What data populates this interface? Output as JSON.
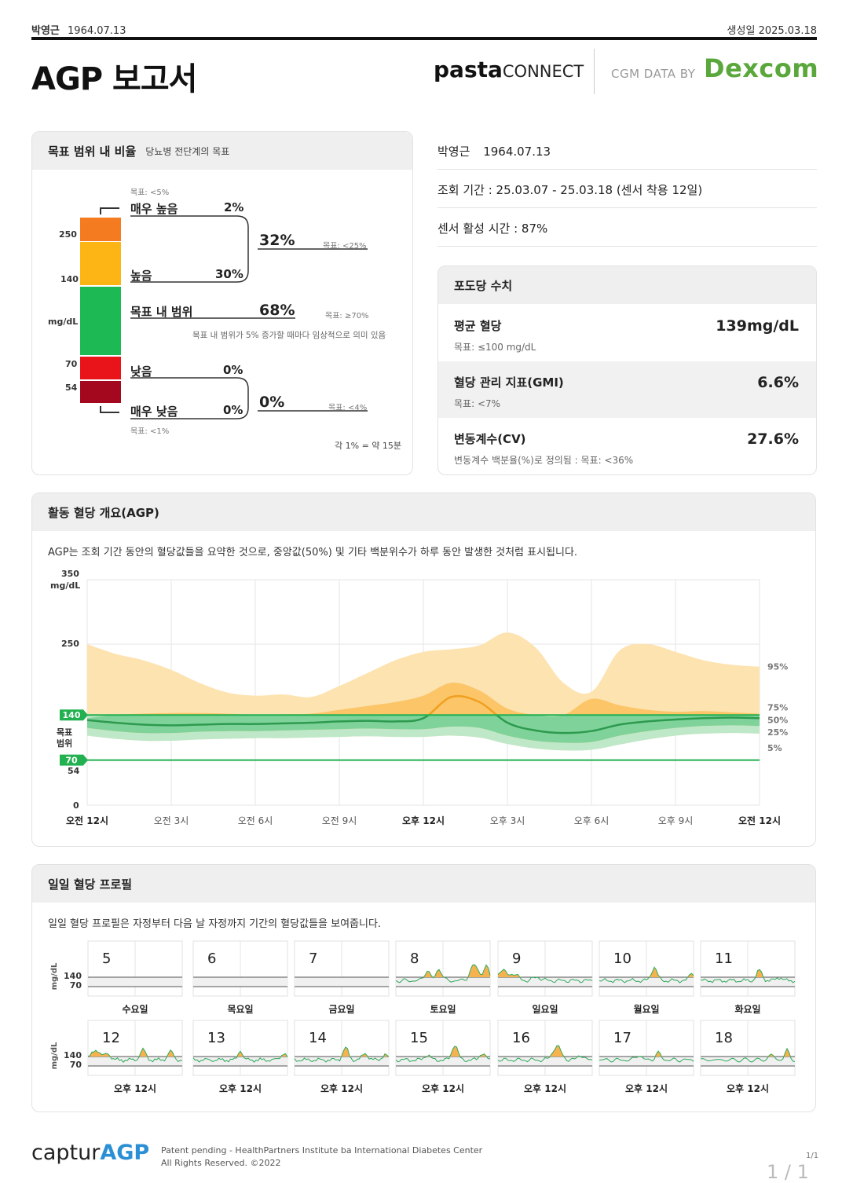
{
  "header": {
    "patient_name": "박영근",
    "patient_dob": "1964.07.13",
    "generated_label": "생성일",
    "generated_date": "2025.03.18",
    "title": "AGP 보고서",
    "brand_pasta": "pasta",
    "brand_connect": "CONNECT",
    "cgm_label": "CGM DATA BY",
    "dexcom": "Dexcom"
  },
  "tir": {
    "title": "목표 범위 내 비율",
    "subtitle": "당뇨병 전단계의 목표",
    "very_high": {
      "label": "매우 높음",
      "value": "2%",
      "goal": "목표: <5%"
    },
    "high": {
      "label": "높음",
      "value": "30%"
    },
    "high_combined": {
      "value": "32%",
      "goal": "목표: <25%"
    },
    "in_range": {
      "label": "목표 내 범위",
      "value": "68%",
      "goal": "목표: ≥70%",
      "note": "목표 내 범위가 5% 증가할 때마다 임상적으로 의미 있음"
    },
    "low": {
      "label": "낮음",
      "value": "0%"
    },
    "very_low": {
      "label": "매우 낮음",
      "value": "0%",
      "goal": "목표: <1%"
    },
    "low_combined": {
      "value": "0%",
      "goal": "목표: <4%"
    },
    "axis": {
      "t250": "250",
      "t140": "140",
      "unit": "mg/dL",
      "t70": "70",
      "t54": "54"
    },
    "footnote": "각 1% = 약 15분",
    "colors": {
      "very_high": "#f47b20",
      "high": "#fdb515",
      "in_range": "#1db954",
      "low": "#e9141a",
      "very_low": "#a3081e"
    }
  },
  "info": {
    "name": "박영근",
    "dob": "1964.07.13",
    "period": "조회 기간 : 25.03.07 - 25.03.18 (센서 착용 12일)",
    "active": "센서 활성 시간 : 87%"
  },
  "glucose": {
    "title": "포도당 수치",
    "mean": {
      "name": "평균 혈당",
      "goal": "목표: ≤100 mg/dL",
      "value": "139mg/dL"
    },
    "gmi": {
      "name": "혈당 관리 지표(GMI)",
      "goal": "목표: <7%",
      "value": "6.6%"
    },
    "cv": {
      "name": "변동계수(CV)",
      "goal": "변동계수 백분율(%)로 정의됨 : 목표: <36%",
      "value": "27.6%"
    }
  },
  "agp": {
    "title": "활동 혈당 개요(AGP)",
    "description": "AGP는 조회 기간 동안의 혈당값들을 요약한 것으로, 중앙값(50%) 및 기타 백분위수가 하루 동안 발생한 것처럼 표시됩니다.",
    "y_top": "350",
    "y_unit": "mg/dL",
    "y_250": "250",
    "y_54": "54",
    "y_0": "0",
    "target_hi": "140",
    "target_lo": "70",
    "target_label": [
      "목표",
      "범위"
    ],
    "percentile_labels": [
      "95%",
      "75%",
      "50%",
      "25%",
      "5%"
    ]
  },
  "chart_data": {
    "type": "area",
    "x": [
      0,
      1,
      2,
      3,
      4,
      5,
      6,
      7,
      8,
      9,
      10,
      11,
      12,
      13,
      14,
      15,
      16,
      17,
      18,
      19,
      20,
      21,
      22,
      23,
      24
    ],
    "x_tick_labels": [
      "오전 12시",
      "오전 3시",
      "오전 6시",
      "오전 9시",
      "오후 12시",
      "오후 3시",
      "오후 6시",
      "오후 9시",
      "오전 12시"
    ],
    "x_ticks": [
      0,
      3,
      6,
      9,
      12,
      15,
      18,
      21,
      24
    ],
    "ylim": [
      0,
      350
    ],
    "y_ticks": [
      0,
      54,
      70,
      140,
      250,
      350
    ],
    "target_range": [
      70,
      140
    ],
    "series": [
      {
        "name": "95%",
        "values": [
          250,
          235,
          225,
          210,
          190,
          175,
          170,
          172,
          168,
          185,
          205,
          225,
          238,
          242,
          248,
          268,
          245,
          190,
          176,
          240,
          250,
          238,
          225,
          218,
          215
        ]
      },
      {
        "name": "75%",
        "values": [
          135,
          140,
          142,
          143,
          143,
          142,
          140,
          141,
          142,
          148,
          154,
          160,
          170,
          190,
          178,
          150,
          140,
          140,
          165,
          155,
          148,
          145,
          146,
          144,
          142
        ]
      },
      {
        "name": "50%",
        "values": [
          132,
          128,
          125,
          124,
          125,
          126,
          126,
          127,
          128,
          130,
          131,
          130,
          135,
          168,
          160,
          128,
          116,
          112,
          115,
          125,
          130,
          133,
          135,
          136,
          135
        ]
      },
      {
        "name": "25%",
        "values": [
          120,
          115,
          112,
          112,
          114,
          115,
          115,
          116,
          117,
          118,
          119,
          118,
          118,
          122,
          120,
          108,
          100,
          97,
          98,
          108,
          115,
          120,
          123,
          124,
          123
        ]
      },
      {
        "name": "5%",
        "values": [
          108,
          103,
          100,
          100,
          102,
          103,
          104,
          104,
          105,
          106,
          107,
          106,
          106,
          108,
          105,
          95,
          88,
          85,
          86,
          94,
          102,
          108,
          111,
          112,
          111
        ]
      }
    ]
  },
  "daily": {
    "title": "일일 혈당 프로필",
    "description": "일일 혈당 프로필은 자정부터 다음 날 자정까지 기간의 혈당값들을 보여줍니다.",
    "unit": "mg/dL",
    "t140": "140",
    "t70": "70",
    "row1": [
      {
        "day": "5",
        "label": "수요일"
      },
      {
        "day": "6",
        "label": "목요일"
      },
      {
        "day": "7",
        "label": "금요일"
      },
      {
        "day": "8",
        "label": "토요일"
      },
      {
        "day": "9",
        "label": "일요일"
      },
      {
        "day": "10",
        "label": "월요일"
      },
      {
        "day": "11",
        "label": "화요일"
      }
    ],
    "row2": [
      {
        "day": "12",
        "label": "오후 12시"
      },
      {
        "day": "13",
        "label": "오후 12시"
      },
      {
        "day": "14",
        "label": "오후 12시"
      },
      {
        "day": "15",
        "label": "오후 12시"
      },
      {
        "day": "16",
        "label": "오후 12시"
      },
      {
        "day": "17",
        "label": "오후 12시"
      },
      {
        "day": "18",
        "label": "오후 12시"
      }
    ]
  },
  "footer": {
    "logo_a": "captur",
    "logo_b": "AGP",
    "line1": "Patent pending - HealthPartners Institute ba International Diabetes Center",
    "line2": "All Rights Reserved. ©2022",
    "page_small": "1/1",
    "page_big": "1 / 1"
  }
}
